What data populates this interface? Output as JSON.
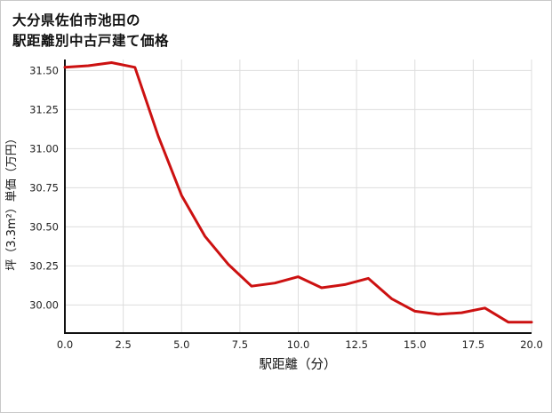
{
  "chart_data": {
    "type": "line",
    "title": "大分県佐伯市池田の 駅距離別中古戸建て価格",
    "title_lines": [
      "大分県佐伯市池田の",
      "駅距離別中古戸建て価格"
    ],
    "xlabel": "駅距離（分）",
    "ylabel": "坪（3.3m²）単価（万円）",
    "x": [
      0,
      1,
      2,
      3,
      4,
      5,
      6,
      7,
      8,
      9,
      10,
      11,
      12,
      13,
      14,
      15,
      16,
      17,
      18,
      19,
      20
    ],
    "y": [
      31.52,
      31.53,
      31.55,
      31.52,
      31.08,
      30.7,
      30.44,
      30.26,
      30.12,
      30.14,
      30.18,
      30.11,
      30.13,
      30.17,
      30.04,
      29.96,
      29.94,
      29.95,
      29.98,
      29.89,
      29.89
    ],
    "xticks": [
      0,
      2.5,
      5,
      7.5,
      10,
      12.5,
      15,
      17.5,
      20
    ],
    "xtick_labels": [
      "0.0",
      "2.5",
      "5.0",
      "7.5",
      "10.0",
      "12.5",
      "15.0",
      "17.5",
      "20.0"
    ],
    "yticks": [
      30.0,
      30.25,
      30.5,
      30.75,
      31.0,
      31.25,
      31.5
    ],
    "ytick_labels": [
      "30.00",
      "30.25",
      "30.50",
      "30.75",
      "31.00",
      "31.25",
      "31.50"
    ],
    "xlim": [
      0,
      20
    ],
    "ylim": [
      29.82,
      31.57
    ],
    "grid": true,
    "legend": "none",
    "line_color": "#cc1111",
    "grid_color": "#dddddd",
    "axis_color": "#111111",
    "background_color": "#ffffff"
  }
}
